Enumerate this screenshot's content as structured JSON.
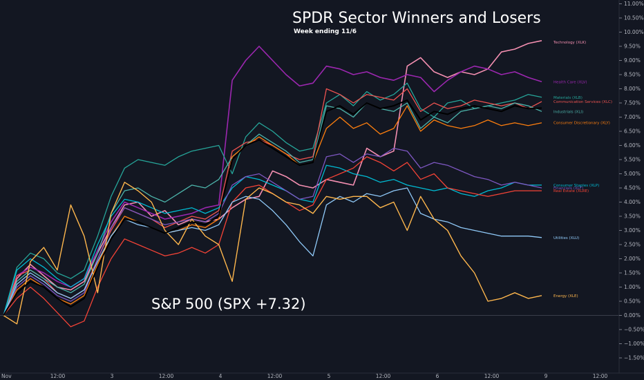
{
  "chart_data": {
    "type": "line",
    "title": "SPDR Sector Winners and Losers",
    "subtitle": "Week ending 11/6",
    "annotation": "S&P 500 (SPX +7.32)",
    "y_unit": "%",
    "ylim": [
      -2.0,
      11.0
    ],
    "y_ticks": [
      11.0,
      10.5,
      10.0,
      9.5,
      9.0,
      8.5,
      8.0,
      7.5,
      7.0,
      6.5,
      6.0,
      5.5,
      5.0,
      4.5,
      4.0,
      3.5,
      3.0,
      2.5,
      2.0,
      1.5,
      1.0,
      0.5,
      0.0,
      -0.5,
      -1.0,
      -1.5
    ],
    "y_tick_labels": [
      "11.00%",
      "10.50%",
      "10.00%",
      "9.50%",
      "9.00%",
      "8.50%",
      "8.00%",
      "7.50%",
      "7.00%",
      "6.50%",
      "6.00%",
      "5.50%",
      "5.00%",
      "4.50%",
      "4.00%",
      "3.50%",
      "3.00%",
      "2.50%",
      "2.00%",
      "1.50%",
      "1.00%",
      "0.50%",
      "0.00%",
      "−0.50%",
      "−1.00%",
      "−1.50%"
    ],
    "xlim": [
      0,
      5
    ],
    "x_ticks": [
      0,
      0.5,
      1,
      1.5,
      2,
      2.5,
      3,
      3.5,
      4,
      4.5,
      5,
      5.5
    ],
    "x_tick_labels": [
      "Nov",
      "12:00",
      "3",
      "12:00",
      "4",
      "12:00",
      "5",
      "12:00",
      "6",
      "12:00",
      "9",
      "12:00"
    ],
    "zero_line": true,
    "grid": false,
    "series": [
      {
        "name": "Technology (XLK)",
        "color": "#f48fb1",
        "line_width": 1.6,
        "label_value": 9.65,
        "values": [
          0.0,
          1.3,
          1.8,
          1.4,
          1.0,
          0.9,
          1.2,
          2.2,
          3.1,
          3.9,
          4.0,
          3.5,
          3.7,
          3.2,
          3.4,
          3.3,
          3.4,
          3.8,
          4.1,
          4.2,
          5.1,
          4.9,
          4.6,
          4.5,
          4.8,
          4.7,
          4.6,
          5.9,
          5.6,
          5.8,
          8.8,
          9.1,
          8.6,
          8.4,
          8.6,
          8.5,
          8.7,
          9.3,
          9.4,
          9.6,
          9.7
        ]
      },
      {
        "name": "Health Care (XLV)",
        "color": "#9c27b0",
        "line_width": 1.6,
        "label_value": 8.25,
        "values": [
          0.0,
          1.4,
          1.7,
          1.5,
          1.2,
          1.0,
          1.3,
          2.3,
          3.3,
          4.0,
          3.8,
          3.6,
          3.4,
          3.5,
          3.6,
          3.8,
          3.9,
          8.3,
          9.0,
          9.5,
          9.0,
          8.5,
          8.1,
          8.2,
          8.8,
          8.7,
          8.5,
          8.6,
          8.4,
          8.3,
          8.5,
          8.4,
          7.9,
          8.3,
          8.6,
          8.8,
          8.7,
          8.5,
          8.6,
          8.4,
          8.25
        ]
      },
      {
        "name": "Materials (XLB)",
        "color": "#26a69a",
        "line_width": 1.3,
        "label_value": 7.7,
        "values": [
          0.0,
          1.7,
          2.2,
          2.0,
          1.5,
          1.3,
          1.6,
          2.8,
          4.2,
          5.2,
          5.5,
          5.4,
          5.3,
          5.6,
          5.8,
          5.9,
          6.0,
          5.0,
          6.3,
          6.8,
          6.5,
          6.1,
          5.8,
          5.9,
          7.5,
          7.8,
          7.4,
          7.9,
          7.6,
          7.8,
          8.2,
          7.3,
          7.0,
          7.5,
          7.6,
          7.3,
          7.4,
          7.5,
          7.6,
          7.8,
          7.7
        ]
      },
      {
        "name": "Communication Services (XLC)",
        "color": "#ef5350",
        "line_width": 1.3,
        "label_value": 7.55,
        "values": [
          0.0,
          1.4,
          1.6,
          1.3,
          0.8,
          0.6,
          0.9,
          2.0,
          3.0,
          3.8,
          3.6,
          3.4,
          3.1,
          3.3,
          3.5,
          3.4,
          3.7,
          5.8,
          6.1,
          6.2,
          6.0,
          5.7,
          5.5,
          5.6,
          8.0,
          7.8,
          7.5,
          7.8,
          7.7,
          7.6,
          8.0,
          7.2,
          7.5,
          7.3,
          7.4,
          7.6,
          7.5,
          7.4,
          7.5,
          7.3,
          7.55
        ]
      },
      {
        "name": "Industrials (XLI)",
        "color": "#4db6ac",
        "line_width": 1.3,
        "label_value": 7.2,
        "values": [
          0.0,
          1.2,
          1.6,
          1.3,
          1.0,
          0.8,
          1.1,
          2.2,
          3.6,
          4.4,
          4.5,
          4.2,
          4.0,
          4.3,
          4.6,
          4.5,
          4.8,
          5.6,
          6.0,
          6.4,
          6.1,
          5.8,
          5.4,
          5.5,
          7.4,
          7.3,
          7.0,
          7.5,
          7.3,
          7.2,
          7.5,
          6.6,
          7.0,
          6.8,
          7.2,
          7.3,
          7.4,
          7.3,
          7.5,
          7.4,
          7.2
        ]
      },
      {
        "name": "Consumer Discretionary (XLY)",
        "color": "#ff7f0e",
        "line_width": 1.3,
        "label_value": 6.8,
        "values": [
          0.0,
          0.9,
          1.3,
          1.0,
          0.6,
          0.4,
          0.7,
          1.8,
          2.8,
          3.5,
          3.3,
          3.1,
          2.9,
          3.0,
          3.2,
          3.1,
          3.4,
          5.6,
          6.0,
          6.3,
          6.0,
          5.7,
          5.3,
          5.4,
          6.6,
          7.0,
          6.6,
          6.8,
          6.4,
          6.6,
          7.4,
          6.5,
          6.9,
          6.7,
          6.6,
          6.7,
          6.9,
          6.7,
          6.8,
          6.7,
          6.8
        ]
      },
      {
        "name": "Consumer Staples (XLP)",
        "color": "#00bcd4",
        "line_width": 1.3,
        "label_value": 4.6,
        "values": [
          0.0,
          1.6,
          2.0,
          1.7,
          1.3,
          1.0,
          1.3,
          2.5,
          3.5,
          4.1,
          4.0,
          3.8,
          3.6,
          3.7,
          3.8,
          3.6,
          3.8,
          4.5,
          4.9,
          4.8,
          4.6,
          4.4,
          4.1,
          4.0,
          5.3,
          5.2,
          5.0,
          4.9,
          4.7,
          4.8,
          4.6,
          4.5,
          4.4,
          4.5,
          4.3,
          4.2,
          4.4,
          4.5,
          4.7,
          4.6,
          4.6
        ]
      },
      {
        "name": "Financials (XLF)",
        "color": "#7e57c2",
        "line_width": 1.3,
        "label_value": 4.5,
        "values": [
          0.0,
          1.0,
          1.4,
          1.1,
          0.7,
          0.5,
          0.8,
          2.0,
          3.1,
          3.8,
          3.6,
          3.4,
          3.2,
          3.3,
          3.4,
          3.3,
          3.6,
          4.6,
          4.9,
          5.0,
          4.7,
          4.4,
          4.1,
          4.2,
          5.6,
          5.7,
          5.4,
          5.7,
          5.6,
          5.9,
          5.8,
          5.2,
          5.4,
          5.3,
          5.1,
          4.9,
          4.8,
          4.6,
          4.7,
          4.6,
          4.5
        ]
      },
      {
        "name": "Real Estate (XLRE)",
        "color": "#f44336",
        "line_width": 1.3,
        "label_value": 4.4,
        "values": [
          0.0,
          0.6,
          1.0,
          0.6,
          0.1,
          -0.4,
          -0.2,
          1.0,
          2.0,
          2.7,
          2.5,
          2.3,
          2.1,
          2.2,
          2.4,
          2.2,
          2.5,
          4.0,
          4.5,
          4.6,
          4.3,
          4.0,
          3.7,
          3.9,
          4.8,
          5.0,
          5.2,
          5.6,
          5.4,
          5.1,
          5.4,
          4.8,
          5.0,
          4.5,
          4.4,
          4.3,
          4.2,
          4.3,
          4.4,
          4.4,
          4.4
        ]
      },
      {
        "name": "Utilities (XLU)",
        "color": "#90caf9",
        "line_width": 1.3,
        "label_value": 2.75,
        "values": [
          0.0,
          1.1,
          1.5,
          1.2,
          0.8,
          0.6,
          0.9,
          1.9,
          2.8,
          3.4,
          3.2,
          3.1,
          2.9,
          3.0,
          3.1,
          3.0,
          3.2,
          4.0,
          4.2,
          4.1,
          3.7,
          3.2,
          2.6,
          2.1,
          3.9,
          4.2,
          4.0,
          4.3,
          4.2,
          4.4,
          4.5,
          3.6,
          3.4,
          3.3,
          3.1,
          3.0,
          2.9,
          2.8,
          2.8,
          2.8,
          2.75
        ]
      },
      {
        "name": "Energy (XLE)",
        "color": "#ffb74d",
        "line_width": 1.4,
        "label_value": 0.7,
        "values": [
          0.0,
          -0.3,
          1.9,
          2.4,
          1.6,
          3.9,
          2.8,
          0.8,
          3.6,
          4.7,
          4.4,
          4.0,
          3.0,
          2.5,
          3.4,
          2.8,
          2.5,
          1.2,
          4.1,
          4.5,
          4.3,
          4.0,
          3.9,
          3.6,
          4.2,
          4.1,
          4.2,
          4.2,
          3.8,
          4.0,
          3.0,
          4.2,
          3.4,
          3.0,
          2.1,
          1.5,
          0.5,
          0.6,
          0.8,
          0.6,
          0.7
        ]
      },
      {
        "name": "",
        "color": "#000000",
        "line_width": 2.0,
        "label_value": null,
        "values": [
          0.0,
          0.8,
          1.2,
          1.0,
          0.6,
          0.3,
          0.6,
          1.7,
          2.7,
          3.4,
          3.3,
          3.1,
          2.9,
          3.1,
          3.3,
          3.2,
          3.5,
          5.5,
          6.0,
          6.2,
          5.9,
          5.6,
          5.3,
          5.4,
          7.2,
          7.4,
          7.1,
          7.5,
          7.3,
          7.4,
          7.6,
          6.9,
          7.2,
          7.1,
          7.3,
          7.4,
          7.3,
          7.2,
          7.4,
          7.3,
          7.32
        ]
      }
    ]
  }
}
